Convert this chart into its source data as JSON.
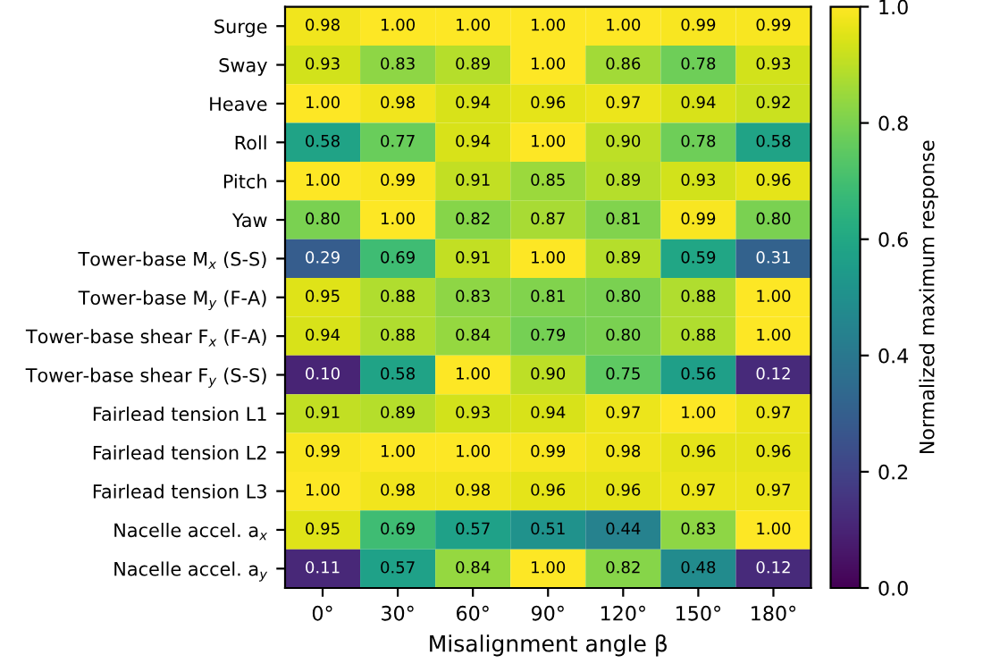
{
  "chart_data": {
    "type": "heatmap",
    "xlabel": "Misalignment angle β",
    "clabel": "Normalized maximum response",
    "categories": [
      "0°",
      "30°",
      "60°",
      "90°",
      "120°",
      "150°",
      "180°"
    ],
    "y_categories": [
      "Surge",
      "Sway",
      "Heave",
      "Roll",
      "Pitch",
      "Yaw",
      "Tower-base M$_{x}$ (S-S)",
      "Tower-base M$_{y}$ (F-A)",
      "Tower-base shear F$_{x}$ (F-A)",
      "Tower-base shear F$_{y}$ (S-S)",
      "Fairlead tension L1",
      "Fairlead tension L2",
      "Fairlead tension L3",
      "Nacelle accel. a$_{x}$",
      "Nacelle accel. a$_{y}$"
    ],
    "cells": [
      [
        0.98,
        1.0,
        1.0,
        1.0,
        1.0,
        0.99,
        0.99
      ],
      [
        0.93,
        0.83,
        0.89,
        1.0,
        0.86,
        0.78,
        0.93
      ],
      [
        1.0,
        0.98,
        0.94,
        0.96,
        0.97,
        0.94,
        0.92
      ],
      [
        0.58,
        0.77,
        0.94,
        1.0,
        0.9,
        0.78,
        0.58
      ],
      [
        1.0,
        0.99,
        0.91,
        0.85,
        0.89,
        0.93,
        0.96
      ],
      [
        0.8,
        1.0,
        0.82,
        0.87,
        0.81,
        0.99,
        0.8
      ],
      [
        0.29,
        0.69,
        0.91,
        1.0,
        0.89,
        0.59,
        0.31
      ],
      [
        0.95,
        0.88,
        0.83,
        0.81,
        0.8,
        0.88,
        1.0
      ],
      [
        0.94,
        0.88,
        0.84,
        0.79,
        0.8,
        0.88,
        1.0
      ],
      [
        0.1,
        0.58,
        1.0,
        0.9,
        0.75,
        0.56,
        0.12
      ],
      [
        0.91,
        0.89,
        0.93,
        0.94,
        0.97,
        1.0,
        0.97
      ],
      [
        0.99,
        1.0,
        1.0,
        0.99,
        0.98,
        0.96,
        0.96
      ],
      [
        1.0,
        0.98,
        0.98,
        0.96,
        0.96,
        0.97,
        0.97
      ],
      [
        0.95,
        0.69,
        0.57,
        0.51,
        0.44,
        0.83,
        1.0
      ],
      [
        0.11,
        0.57,
        0.84,
        1.0,
        0.82,
        0.48,
        0.12
      ]
    ],
    "cell_labels": [
      [
        "0.98",
        "1.00",
        "1.00",
        "1.00",
        "1.00",
        "0.99",
        "0.99"
      ],
      [
        "0.93",
        "0.83",
        "0.89",
        "1.00",
        "0.86",
        "0.78",
        "0.93"
      ],
      [
        "1.00",
        "0.98",
        "0.94",
        "0.96",
        "0.97",
        "0.94",
        "0.92"
      ],
      [
        "0.58",
        "0.77",
        "0.94",
        "1.00",
        "0.90",
        "0.78",
        "0.58"
      ],
      [
        "1.00",
        "0.99",
        "0.91",
        "0.85",
        "0.89",
        "0.93",
        "0.96"
      ],
      [
        "0.80",
        "1.00",
        "0.82",
        "0.87",
        "0.81",
        "0.99",
        "0.80"
      ],
      [
        "0.29",
        "0.69",
        "0.91",
        "1.00",
        "0.89",
        "0.59",
        "0.31"
      ],
      [
        "0.95",
        "0.88",
        "0.83",
        "0.81",
        "0.80",
        "0.88",
        "1.00"
      ],
      [
        "0.94",
        "0.88",
        "0.84",
        "0.79",
        "0.80",
        "0.88",
        "1.00"
      ],
      [
        "0.10",
        "0.58",
        "1.00",
        "0.90",
        "0.75",
        "0.56",
        "0.12"
      ],
      [
        "0.91",
        "0.89",
        "0.93",
        "0.94",
        "0.97",
        "1.00",
        "0.97"
      ],
      [
        "0.99",
        "1.00",
        "1.00",
        "0.99",
        "0.98",
        "0.96",
        "0.96"
      ],
      [
        "1.00",
        "0.98",
        "0.98",
        "0.96",
        "0.96",
        "0.97",
        "0.97"
      ],
      [
        "0.95",
        "0.69",
        "0.57",
        "0.51",
        "0.44",
        "0.83",
        "1.00"
      ],
      [
        "0.11",
        "0.57",
        "0.84",
        "1.00",
        "0.82",
        "0.48",
        "0.12"
      ]
    ],
    "clim": [
      0,
      1
    ],
    "cticks": [
      {
        "value": 0,
        "label": "0.0"
      },
      {
        "value": 0.2,
        "label": "0.2"
      },
      {
        "value": 0.4,
        "label": "0.4"
      },
      {
        "value": 0.6,
        "label": "0.6"
      },
      {
        "value": 0.8,
        "label": "0.8"
      },
      {
        "value": 1,
        "label": "1.0"
      }
    ]
  }
}
